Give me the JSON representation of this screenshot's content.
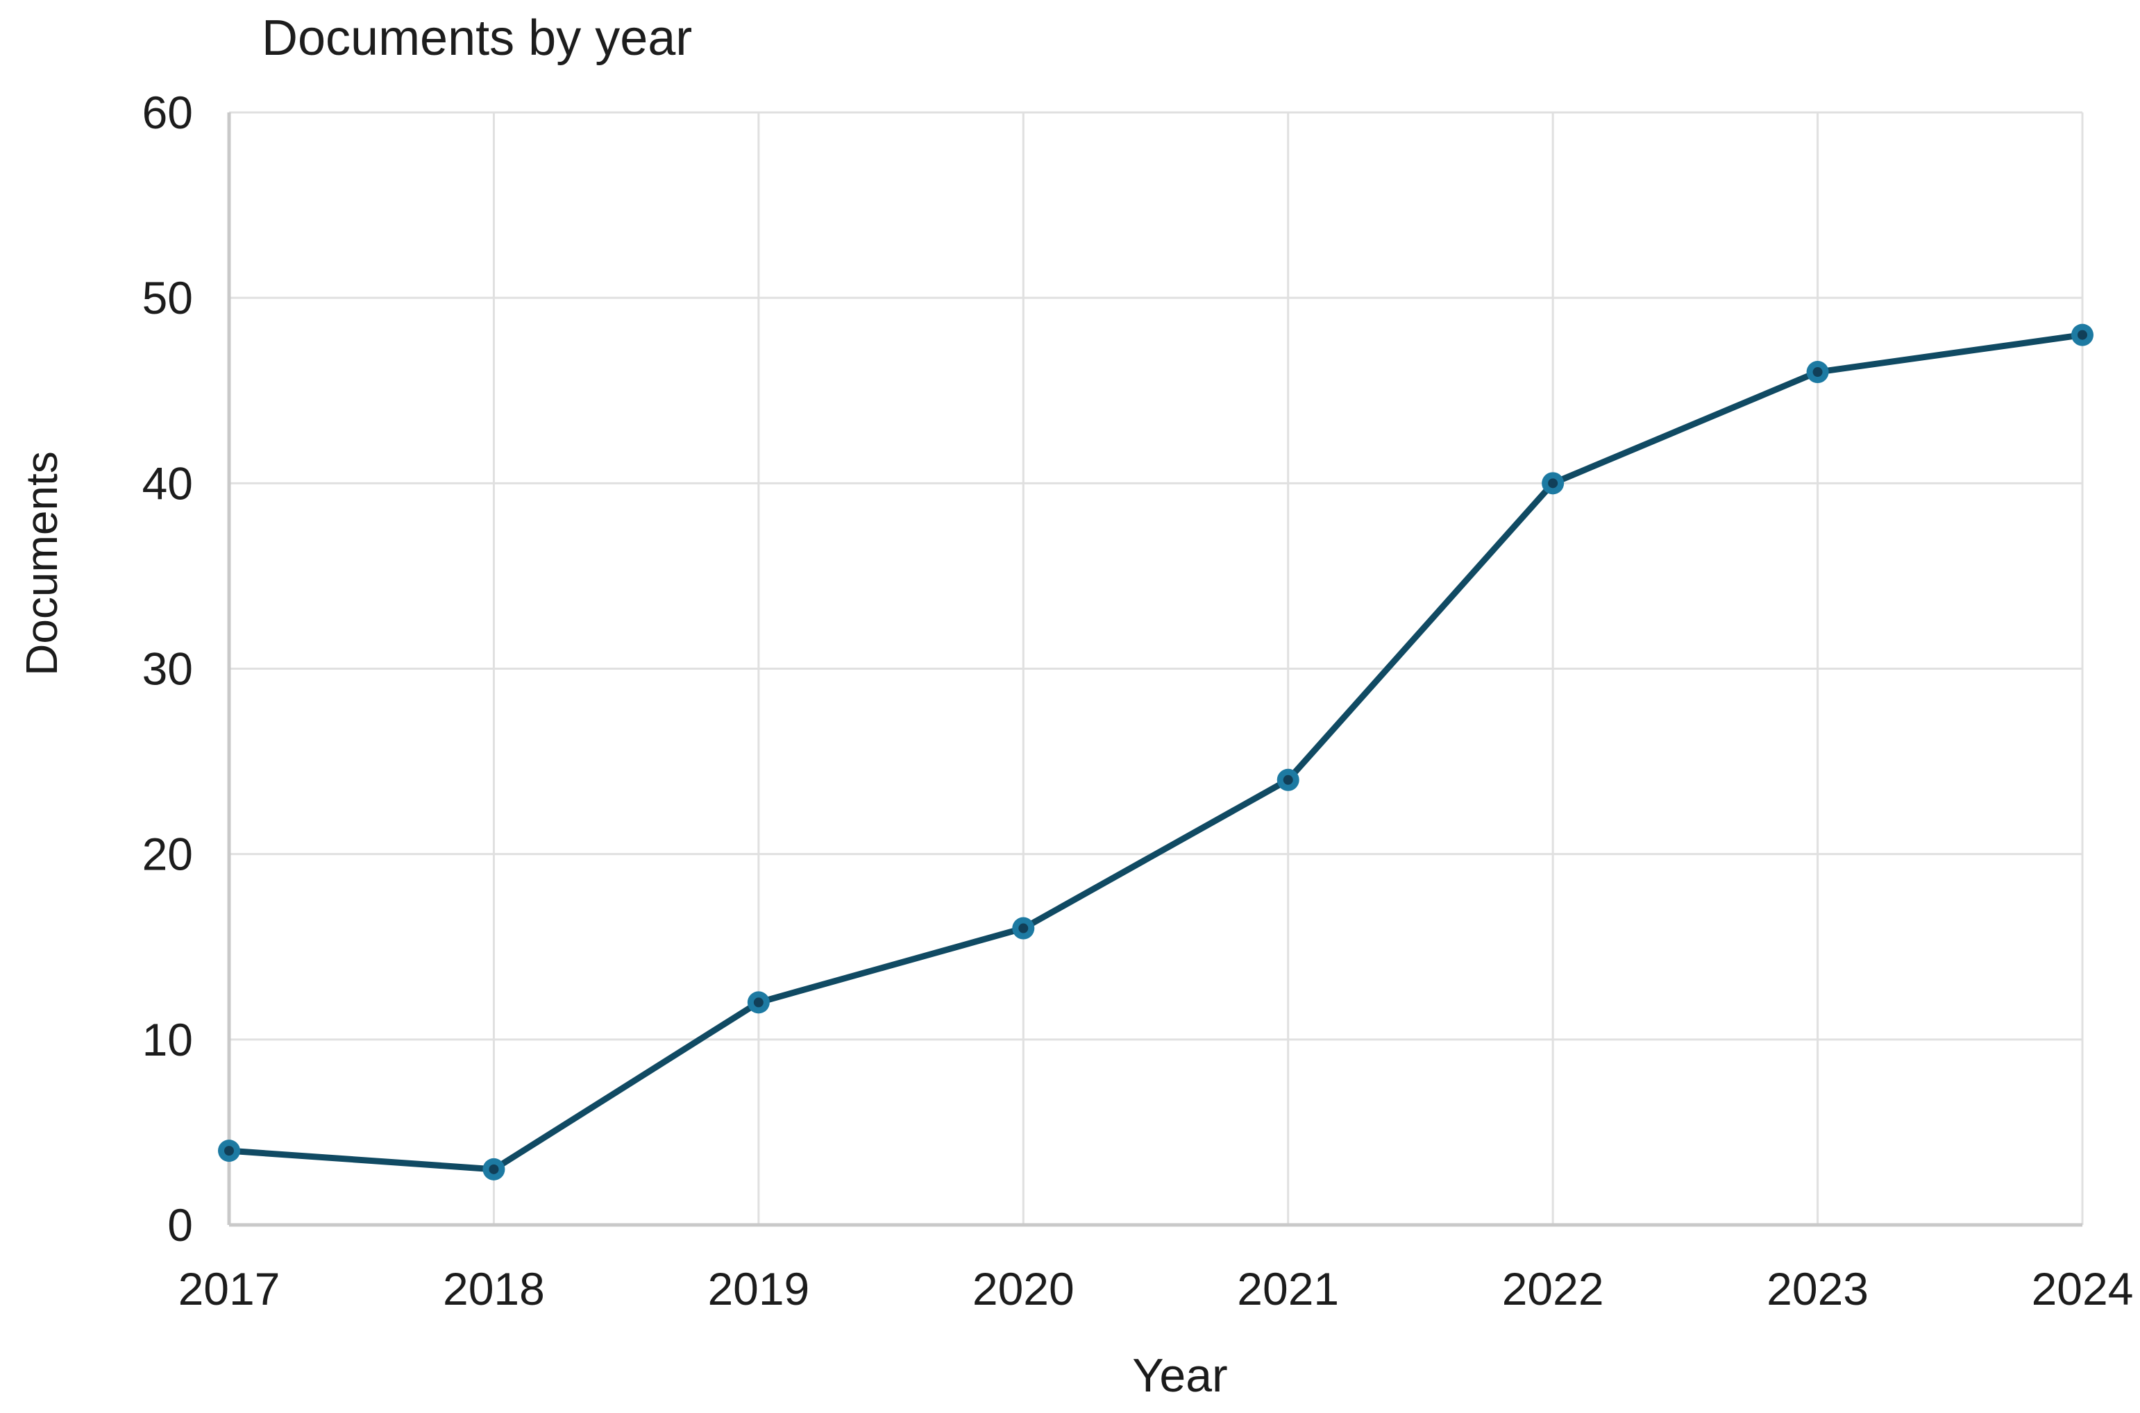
{
  "page": {
    "background": "#ffffff",
    "text_color": "#1b1b1b"
  },
  "chart_data": {
    "type": "line",
    "title": "Documents by year",
    "xlabel": "Year",
    "ylabel": "Documents",
    "categories": [
      "2017",
      "2018",
      "2019",
      "2020",
      "2021",
      "2022",
      "2023",
      "2024"
    ],
    "values": [
      4,
      3,
      12,
      16,
      24,
      40,
      46,
      48
    ],
    "series": [
      {
        "name": "Documents",
        "values": [
          4,
          3,
          12,
          16,
          24,
          40,
          46,
          48
        ]
      }
    ],
    "ylim": [
      0,
      60
    ],
    "y_ticks": [
      0,
      10,
      20,
      30,
      40,
      50,
      60
    ],
    "grid": true,
    "legend_position": "none",
    "colors": {
      "line": "#104a63",
      "marker": "#1d7aa2",
      "marker_core": "#113f58",
      "grid": "#e0e0e0",
      "axis": "#c9c9c9",
      "tick_text": "#1c1c1c"
    }
  }
}
